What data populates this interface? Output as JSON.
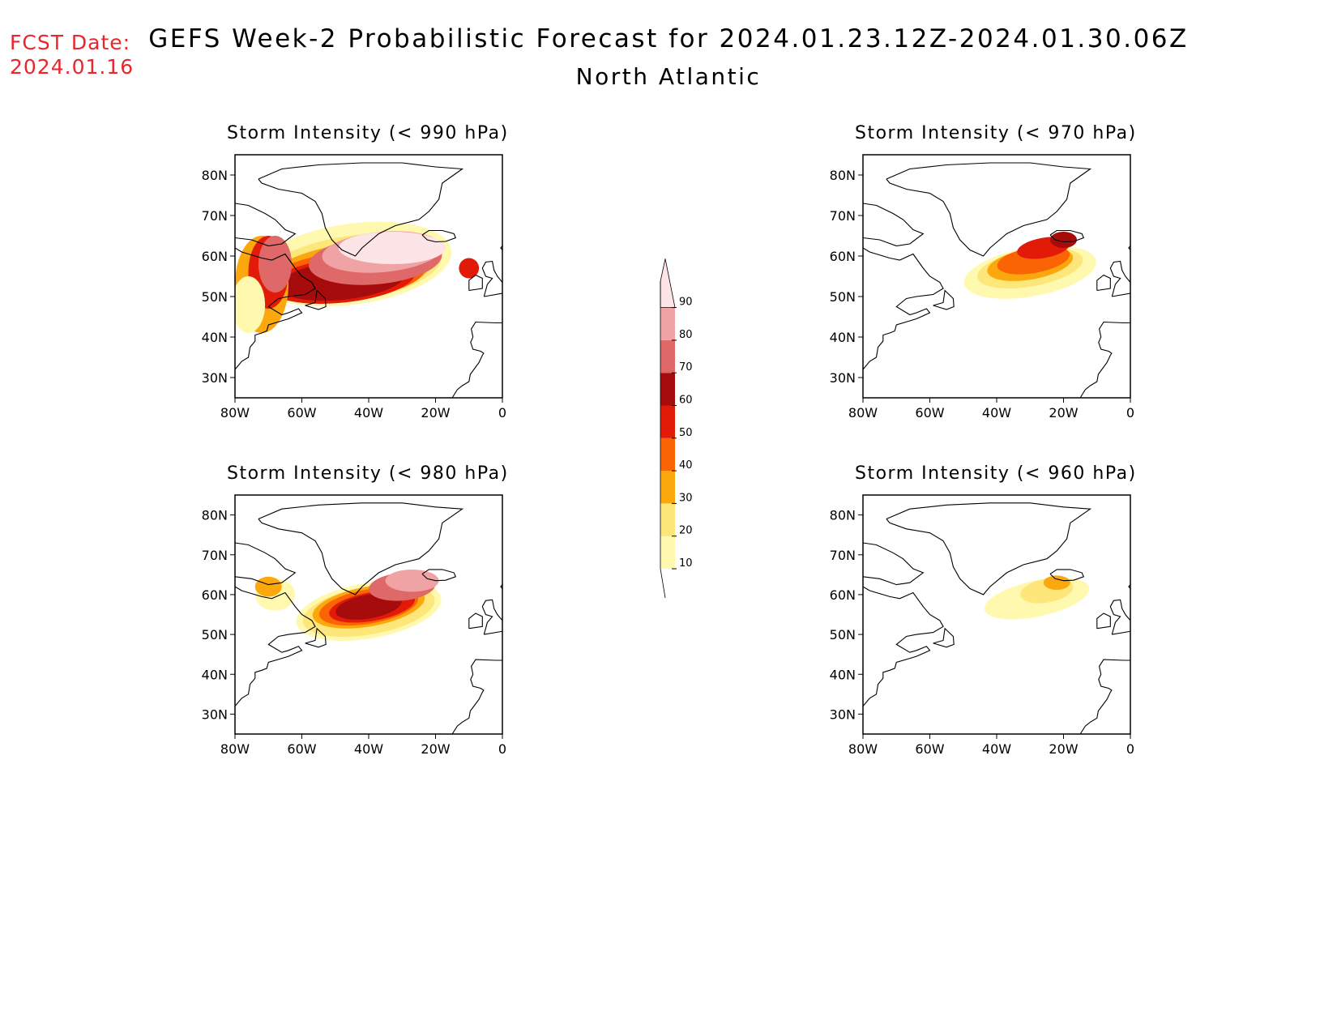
{
  "header": {
    "fcst_label": "FCST Date:",
    "fcst_date": "2024.01.16",
    "title": "GEFS Week-2 Probabilistic Forecast for 2024.01.23.12Z-2024.01.30.06Z",
    "subtitle": "North Atlantic"
  },
  "axes": {
    "lon_labels": [
      "80W",
      "60W",
      "40W",
      "20W",
      "0"
    ],
    "lat_labels": [
      "80N",
      "70N",
      "60N",
      "50N",
      "40N",
      "30N"
    ],
    "lon_range": [
      -80,
      0
    ],
    "lat_range": [
      25,
      85
    ]
  },
  "panels": [
    {
      "id": "p990",
      "title": "Storm Intensity (< 990 hPa)",
      "threshold_hpa": 990,
      "intensity": "high"
    },
    {
      "id": "p970",
      "title": "Storm Intensity (< 970 hPa)",
      "threshold_hpa": 970,
      "intensity": "medium"
    },
    {
      "id": "p980",
      "title": "Storm Intensity (< 980 hPa)",
      "threshold_hpa": 980,
      "intensity": "high-east"
    },
    {
      "id": "p960",
      "title": "Storm Intensity (< 960 hPa)",
      "threshold_hpa": 960,
      "intensity": "low"
    }
  ],
  "colorbar": {
    "levels": [
      "10",
      "20",
      "30",
      "40",
      "50",
      "60",
      "70",
      "80",
      "90"
    ],
    "colors": [
      "#fff9b0",
      "#fde67a",
      "#fba80e",
      "#fa6404",
      "#e21a08",
      "#a60c0b",
      "#df6868",
      "#f0a3a5",
      "#fde4e6"
    ]
  }
}
